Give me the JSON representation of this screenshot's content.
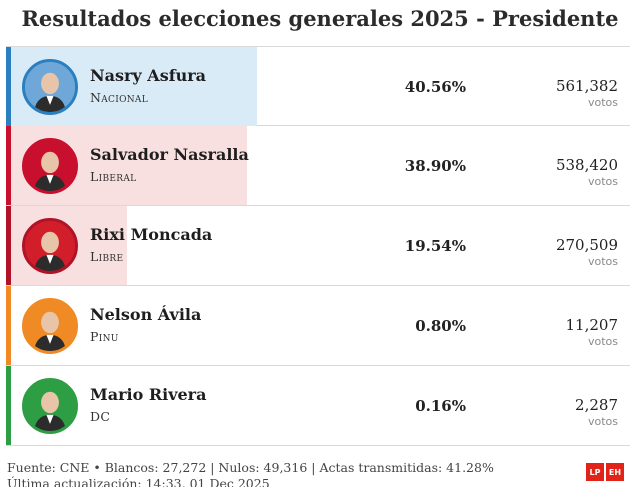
{
  "title": "Resultados elecciones generales 2025 - Presidente",
  "candidates": [
    {
      "name": "Nasry Asfura",
      "party": "Nacional",
      "percent": "40.56%",
      "votes": "561,382",
      "votes_unit": "votos",
      "share": 40.56,
      "color": "#2a7fc1",
      "bar_color": "#d9ebf7",
      "avatar_bg": "#6fa8d8"
    },
    {
      "name": "Salvador Nasralla",
      "party": "Liberal",
      "percent": "38.90%",
      "votes": "538,420",
      "votes_unit": "votos",
      "share": 38.9,
      "color": "#c8102e",
      "bar_color": "#f8e0e0",
      "avatar_bg": "#c8102e"
    },
    {
      "name": "Rixi Moncada",
      "party": "Libre",
      "percent": "19.54%",
      "votes": "270,509",
      "votes_unit": "votos",
      "share": 19.54,
      "color": "#b01227",
      "bar_color": "#f8e0e0",
      "avatar_bg": "#d21e2b"
    },
    {
      "name": "Nelson Ávila",
      "party": "Pinu",
      "percent": "0.80%",
      "votes": "11,207",
      "votes_unit": "votos",
      "share": 0.8,
      "color": "#f08a24",
      "bar_color": "#fdeede",
      "avatar_bg": "#f08a24"
    },
    {
      "name": "Mario Rivera",
      "party": "DC",
      "percent": "0.16%",
      "votes": "2,287",
      "votes_unit": "votos",
      "share": 0.16,
      "color": "#2e9e44",
      "bar_color": "#e2f3e5",
      "avatar_bg": "#2e9e44"
    }
  ],
  "footer": {
    "line1": "Fuente: CNE • Blancos: 27,272 | Nulos: 49,316 | Actas transmitidas: 41.28%",
    "line2": "Última actualización: 14:33, 01 Dec 2025"
  },
  "logos": [
    {
      "text": "LP",
      "color": "#e2231a"
    },
    {
      "text": "EH",
      "color": "#e2231a"
    }
  ]
}
